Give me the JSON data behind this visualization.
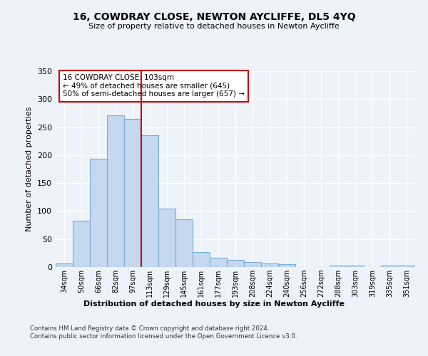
{
  "title": "16, COWDRAY CLOSE, NEWTON AYCLIFFE, DL5 4YQ",
  "subtitle": "Size of property relative to detached houses in Newton Aycliffe",
  "xlabel": "Distribution of detached houses by size in Newton Aycliffe",
  "ylabel": "Number of detached properties",
  "categories": [
    "34sqm",
    "50sqm",
    "66sqm",
    "82sqm",
    "97sqm",
    "113sqm",
    "129sqm",
    "145sqm",
    "161sqm",
    "177sqm",
    "193sqm",
    "208sqm",
    "224sqm",
    "240sqm",
    "256sqm",
    "272sqm",
    "288sqm",
    "303sqm",
    "319sqm",
    "335sqm",
    "351sqm"
  ],
  "values": [
    6,
    83,
    193,
    271,
    265,
    235,
    104,
    85,
    27,
    17,
    13,
    9,
    6,
    5,
    0,
    0,
    3,
    2,
    0,
    3,
    2
  ],
  "bar_color": "#c5d8f0",
  "bar_edge_color": "#7aadd4",
  "vline_x_index": 4.5,
  "vline_color": "#cc0000",
  "annotation_text": "16 COWDRAY CLOSE: 103sqm\n← 49% of detached houses are smaller (645)\n50% of semi-detached houses are larger (657) →",
  "annotation_box_color": "white",
  "annotation_box_edge": "#cc0000",
  "ylim": [
    0,
    350
  ],
  "yticks": [
    0,
    50,
    100,
    150,
    200,
    250,
    300,
    350
  ],
  "footer": "Contains HM Land Registry data © Crown copyright and database right 2024.\nContains public sector information licensed under the Open Government Licence v3.0.",
  "bg_color": "#eef2f9",
  "plot_bg_color": "#eef2f9",
  "grid_color": "#ffffff"
}
